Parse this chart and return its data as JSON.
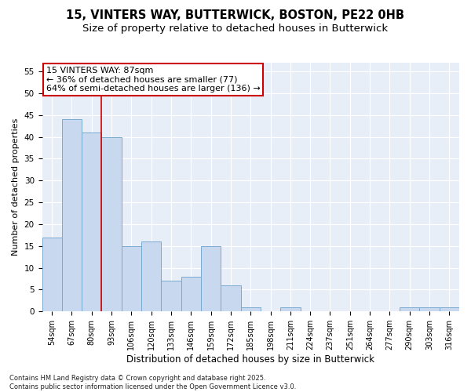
{
  "title1": "15, VINTERS WAY, BUTTERWICK, BOSTON, PE22 0HB",
  "title2": "Size of property relative to detached houses in Butterwick",
  "xlabel": "Distribution of detached houses by size in Butterwick",
  "ylabel": "Number of detached properties",
  "categories": [
    "54sqm",
    "67sqm",
    "80sqm",
    "93sqm",
    "106sqm",
    "120sqm",
    "133sqm",
    "146sqm",
    "159sqm",
    "172sqm",
    "185sqm",
    "198sqm",
    "211sqm",
    "224sqm",
    "237sqm",
    "251sqm",
    "264sqm",
    "277sqm",
    "290sqm",
    "303sqm",
    "316sqm"
  ],
  "values": [
    17,
    44,
    41,
    40,
    15,
    16,
    7,
    8,
    15,
    6,
    1,
    0,
    1,
    0,
    0,
    0,
    0,
    0,
    1,
    1,
    1
  ],
  "bar_color": "#c8d8ee",
  "bar_edge_color": "#7aaad0",
  "background_color": "#e8eef8",
  "grid_color": "#ffffff",
  "annotation_text_line1": "15 VINTERS WAY: 87sqm",
  "annotation_text_line2": "← 36% of detached houses are smaller (77)",
  "annotation_text_line3": "64% of semi-detached houses are larger (136) →",
  "vline_color": "#cc0000",
  "vline_x": 2.5,
  "ylim": [
    0,
    57
  ],
  "yticks": [
    0,
    5,
    10,
    15,
    20,
    25,
    30,
    35,
    40,
    45,
    50,
    55
  ],
  "footnote": "Contains HM Land Registry data © Crown copyright and database right 2025.\nContains public sector information licensed under the Open Government Licence v3.0.",
  "title_fontsize": 10.5,
  "subtitle_fontsize": 9.5,
  "tick_fontsize": 7,
  "ylabel_fontsize": 8,
  "xlabel_fontsize": 8.5,
  "annotation_fontsize": 8,
  "footnote_fontsize": 6
}
